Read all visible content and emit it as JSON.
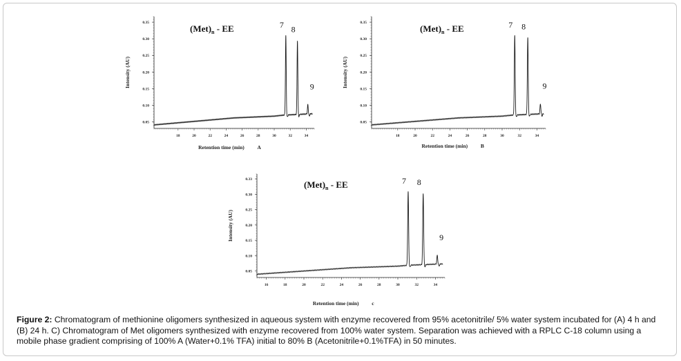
{
  "chart_data": [
    {
      "type": "line",
      "panel_id": "A",
      "title_main": "(Met)",
      "title_sub": "n",
      "title_tail": " - EE",
      "xlabel": "Retention time (min)",
      "panel_label": "A",
      "ylabel": "Intensity (AU)",
      "xlim": [
        15,
        35
      ],
      "ylim": [
        0.03,
        0.35
      ],
      "x_ticks": [
        "18",
        "20",
        "22",
        "24",
        "26",
        "28",
        "30",
        "32",
        "34"
      ],
      "y_ticks": [
        "0.05",
        "0.10",
        "0.15",
        "0.20",
        "0.25",
        "0.30",
        "0.35"
      ],
      "baseline": [
        [
          15,
          0.04
        ],
        [
          20,
          0.05
        ],
        [
          25,
          0.06
        ],
        [
          30,
          0.065
        ],
        [
          31.2,
          0.068
        ],
        [
          33,
          0.07
        ],
        [
          34.8,
          0.072
        ]
      ],
      "peaks": [
        {
          "label": "7",
          "rt": 31.45,
          "height": 0.295
        },
        {
          "label": "8",
          "rt": 32.9,
          "height": 0.282
        },
        {
          "label": "9",
          "rt": 34.2,
          "height": 0.098
        }
      ]
    },
    {
      "type": "line",
      "panel_id": "B",
      "title_main": "(Met)",
      "title_sub": "n",
      "title_tail": " - EE",
      "xlabel": "Retention time (min)",
      "panel_label": "B",
      "ylabel": "Intensity (AU)",
      "xlim": [
        15,
        35
      ],
      "ylim": [
        0.03,
        0.35
      ],
      "x_ticks": [
        "18",
        "20",
        "22",
        "24",
        "26",
        "28",
        "30",
        "32",
        "34"
      ],
      "y_ticks": [
        "0.05",
        "0.10",
        "0.15",
        "0.20",
        "0.25",
        "0.30",
        "0.35"
      ],
      "baseline": [
        [
          15,
          0.04
        ],
        [
          20,
          0.05
        ],
        [
          25,
          0.06
        ],
        [
          30,
          0.065
        ],
        [
          31.2,
          0.068
        ],
        [
          33,
          0.07
        ],
        [
          34.8,
          0.072
        ]
      ],
      "peaks": [
        {
          "label": "7",
          "rt": 31.45,
          "height": 0.295
        },
        {
          "label": "8",
          "rt": 32.95,
          "height": 0.29
        },
        {
          "label": "9",
          "rt": 34.4,
          "height": 0.1
        }
      ]
    },
    {
      "type": "line",
      "panel_id": "C",
      "title_main": "(Met)",
      "title_sub": "n",
      "title_tail": " - EE",
      "xlabel": "Retention time (min)",
      "panel_label": "c",
      "ylabel": "Intensity (AU)",
      "xlim": [
        15,
        35
      ],
      "ylim": [
        0.03,
        0.35
      ],
      "x_ticks": [
        "16",
        "18",
        "20",
        "22",
        "24",
        "26",
        "28",
        "30",
        "32",
        "34"
      ],
      "y_ticks": [
        "0.05",
        "0.10",
        "0.15",
        "0.20",
        "0.25",
        "0.30",
        "0.33"
      ],
      "baseline": [
        [
          15,
          0.04
        ],
        [
          20,
          0.05
        ],
        [
          25,
          0.06
        ],
        [
          30,
          0.065
        ],
        [
          31.2,
          0.068
        ],
        [
          33,
          0.07
        ],
        [
          34.8,
          0.072
        ]
      ],
      "peaks": [
        {
          "label": "7",
          "rt": 31.1,
          "height": 0.295
        },
        {
          "label": "8",
          "rt": 32.7,
          "height": 0.29
        },
        {
          "label": "9",
          "rt": 34.2,
          "height": 0.098
        }
      ]
    }
  ],
  "caption": {
    "label": "Figure 2:",
    "text": " Chromatogram of methionine oligomers synthesized in aqueous system with enzyme recovered from 95% acetonitrile/ 5% water system incubated for (A) 4 h and (B) 24 h. C) Chromatogram of Met oligomers synthesized with enzyme recovered from 100% water system. Separation was achieved with a RPLC C-18 column using a mobile phase gradient comprising of 100% A (Water+0.1% TFA) initial to 80% B (Acetonitrile+0.1%TFA) in 50 minutes."
  }
}
